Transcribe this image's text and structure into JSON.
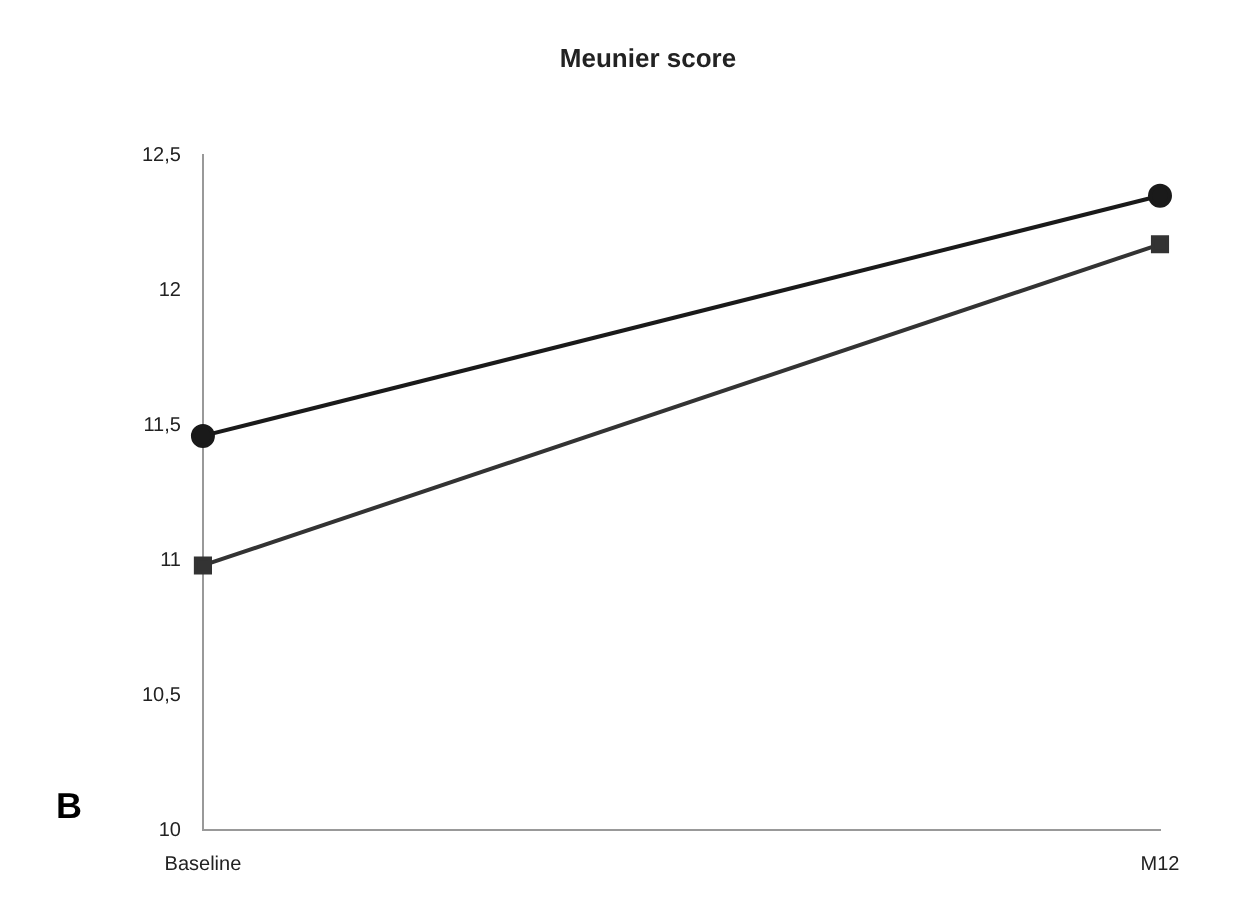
{
  "chart_data": {
    "type": "line",
    "title": "Meunier score",
    "categories": [
      "Baseline",
      "M12"
    ],
    "series": [
      {
        "color": "#1a1a1a",
        "values": [
          11.46,
          12.35
        ],
        "marker": "circle"
      },
      {
        "color": "#333333",
        "values": [
          10.98,
          12.17
        ],
        "marker": "square"
      }
    ],
    "ylim": [
      10,
      12.5
    ],
    "yticks": [
      10,
      {
        "value": 10.5,
        "label": "10,5"
      },
      11,
      {
        "value": 11.5,
        "label": "11,5"
      },
      12,
      {
        "value": 12.5,
        "label": "12,5"
      }
    ],
    "grid": false,
    "legend": false,
    "annotations": [
      "B"
    ]
  }
}
